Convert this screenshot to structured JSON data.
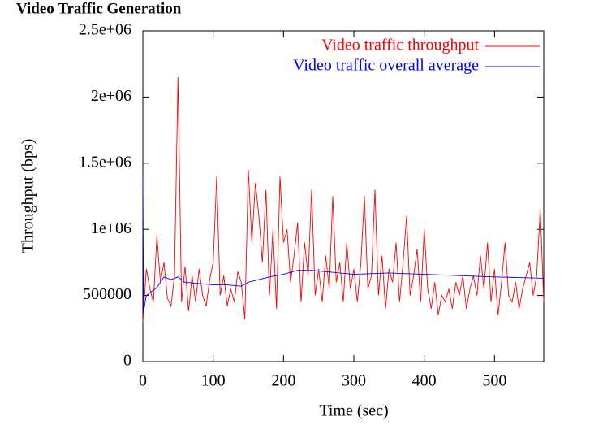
{
  "chart_data": {
    "type": "line",
    "title": "Video Traffic Generation",
    "x_label": "Time (sec)",
    "y_label": "Throughput (bps)",
    "xlim": [
      0,
      570
    ],
    "xticks": [
      0,
      100,
      200,
      300,
      400,
      500
    ],
    "ylim": [
      0,
      2500000
    ],
    "yticks": [
      0,
      500000,
      {
        "value": 1000000,
        "label": "1e+06"
      },
      {
        "value": 1500000,
        "label": "1.5e+06"
      },
      {
        "value": 2000000,
        "label": "2e+06"
      },
      {
        "value": 2500000,
        "label": "2.5e+06"
      }
    ],
    "legend": "top-right",
    "series": [
      {
        "name": "Video traffic throughput",
        "color": "#ff0000",
        "x": [
          0,
          5,
          10,
          15,
          20,
          25,
          30,
          35,
          40,
          45,
          50,
          55,
          60,
          65,
          70,
          75,
          80,
          85,
          90,
          95,
          100,
          105,
          110,
          115,
          120,
          125,
          130,
          135,
          140,
          145,
          150,
          155,
          160,
          165,
          170,
          175,
          180,
          185,
          190,
          195,
          200,
          205,
          210,
          215,
          220,
          225,
          230,
          235,
          240,
          245,
          250,
          255,
          260,
          265,
          270,
          275,
          280,
          285,
          290,
          295,
          300,
          305,
          310,
          315,
          320,
          325,
          330,
          335,
          340,
          345,
          350,
          355,
          360,
          365,
          370,
          375,
          380,
          385,
          390,
          395,
          400,
          405,
          410,
          415,
          420,
          425,
          430,
          435,
          440,
          445,
          450,
          455,
          460,
          465,
          470,
          475,
          480,
          485,
          490,
          495,
          500,
          505,
          510,
          515,
          520,
          525,
          530,
          535,
          540,
          545,
          550,
          555,
          560,
          565,
          570
        ],
        "values": [
          300000,
          700000,
          550000,
          450000,
          950000,
          600000,
          750000,
          480000,
          420000,
          650000,
          2150000,
          450000,
          720000,
          380000,
          650000,
          450000,
          700000,
          500000,
          420000,
          620000,
          750000,
          1400000,
          500000,
          650000,
          420000,
          550000,
          450000,
          680000,
          600000,
          320000,
          1450000,
          900000,
          1350000,
          1100000,
          750000,
          1300000,
          500000,
          1000000,
          400000,
          1400000,
          900000,
          1000000,
          600000,
          800000,
          1050000,
          450000,
          900000,
          650000,
          1300000,
          500000,
          700000,
          450000,
          800000,
          550000,
          1250000,
          600000,
          750000,
          450000,
          900000,
          550000,
          700000,
          450000,
          750000,
          1250000,
          550000,
          650000,
          1300000,
          500000,
          800000,
          400000,
          700000,
          600000,
          900000,
          450000,
          750000,
          1100000,
          500000,
          650000,
          850000,
          450000,
          1000000,
          550000,
          400000,
          600000,
          350000,
          500000,
          450000,
          550000,
          400000,
          600000,
          500000,
          650000,
          400000,
          550000,
          650000,
          500000,
          800000,
          550000,
          900000,
          450000,
          700000,
          350000,
          600000,
          900000,
          500000,
          450000,
          600000,
          400000,
          550000,
          650000,
          750000,
          500000,
          650000,
          1150000,
          450000
        ]
      },
      {
        "name": "Video traffic overall average",
        "color": "#0000ff",
        "x": [
          0,
          1,
          5,
          10,
          20,
          30,
          40,
          50,
          60,
          80,
          100,
          120,
          140,
          150,
          180,
          200,
          220,
          240,
          260,
          300,
          350,
          400,
          450,
          500,
          570
        ],
        "values": [
          1400000,
          380000,
          500000,
          520000,
          560000,
          640000,
          620000,
          640000,
          600000,
          590000,
          580000,
          580000,
          570000,
          600000,
          640000,
          660000,
          690000,
          690000,
          680000,
          660000,
          670000,
          660000,
          650000,
          640000,
          630000
        ]
      }
    ]
  }
}
